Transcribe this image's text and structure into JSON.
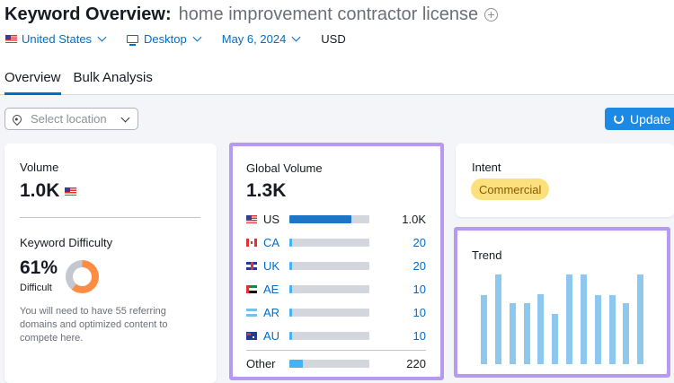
{
  "header": {
    "title": "Keyword Overview:",
    "keyword": "home improvement contractor license",
    "filters": {
      "country": "United States",
      "device": "Desktop",
      "date": "May 6, 2024",
      "currency": "USD"
    },
    "tabs": [
      {
        "label": "Overview",
        "active": true
      },
      {
        "label": "Bulk Analysis",
        "active": false
      }
    ]
  },
  "toolbar": {
    "location_placeholder": "Select location",
    "update_label": "Update"
  },
  "volume_card": {
    "label": "Volume",
    "value": "1.0K",
    "kd_label": "Keyword Difficulty",
    "kd_value": "61%",
    "kd_percent": 61,
    "kd_level": "Difficult",
    "kd_description": "You will need to have 55 referring domains and optimized content to compete here."
  },
  "global_volume": {
    "label": "Global Volume",
    "value": "1.3K",
    "rows": [
      {
        "code": "US",
        "value": "1.0K",
        "share": 0.77
      },
      {
        "code": "CA",
        "value": "20",
        "share": 0.03
      },
      {
        "code": "UK",
        "value": "20",
        "share": 0.03
      },
      {
        "code": "AE",
        "value": "10",
        "share": 0.03
      },
      {
        "code": "AR",
        "value": "10",
        "share": 0.03
      },
      {
        "code": "AU",
        "value": "10",
        "share": 0.03
      }
    ],
    "other": {
      "label": "Other",
      "value": "220",
      "share": 0.17
    }
  },
  "intent": {
    "label": "Intent",
    "badge": "Commercial"
  },
  "trend": {
    "label": "Trend",
    "values": [
      0.77,
      1.0,
      0.68,
      0.68,
      0.78,
      0.56,
      1.0,
      1.0,
      0.77,
      0.77,
      0.68,
      1.0
    ]
  },
  "colors": {
    "accent": "#006dca",
    "button": "#1c8ae4",
    "highlight": "#b59af0",
    "kd_orange": "#ff8c43",
    "intent_badge": "#fde07e",
    "trend_bar": "#8fc8ef"
  }
}
